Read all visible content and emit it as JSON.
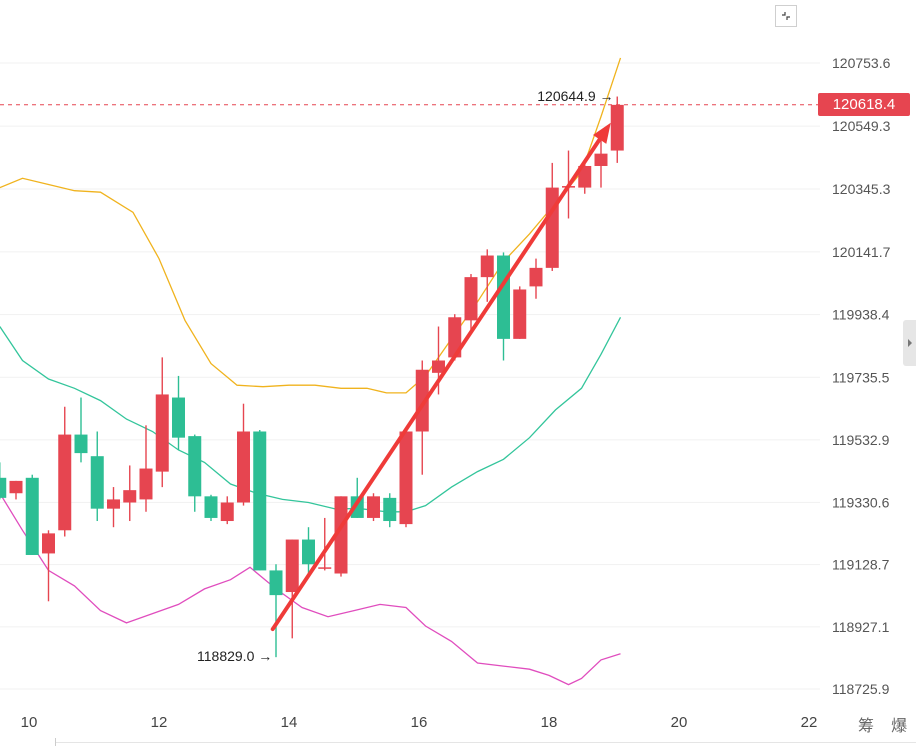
{
  "chart_data": {
    "type": "candlestick",
    "title": "",
    "xlabel": "",
    "ylabel": "",
    "y_ticks": [
      120753.6,
      120549.3,
      120345.3,
      120141.7,
      119938.4,
      119735.5,
      119532.9,
      119330.6,
      119128.7,
      118927.1,
      118725.9
    ],
    "y_tick_labels": [
      "120753.6",
      "120549.3",
      "120345.3",
      "120141.7",
      "119938.4",
      "119735.5",
      "119532.9",
      "119330.6",
      "119128.7",
      "118927.1",
      "118725.9"
    ],
    "x_ticks": [
      10,
      12,
      14,
      16,
      18,
      20,
      22
    ],
    "x_tick_labels": [
      "10",
      "12",
      "14",
      "16",
      "18",
      "20",
      "22"
    ],
    "grid": true,
    "bull_color": "#e64550",
    "bear_color": "#2dbe94",
    "candles": [
      {
        "x": 9.55,
        "o": 119410,
        "h": 119460,
        "l": 119340,
        "c": 119345
      },
      {
        "x": 9.8,
        "o": 119360,
        "h": 119400,
        "l": 119340,
        "c": 119400
      },
      {
        "x": 10.05,
        "o": 119410,
        "h": 119420,
        "l": 119160,
        "c": 119160
      },
      {
        "x": 10.3,
        "o": 119165,
        "h": 119240,
        "l": 119010,
        "c": 119230
      },
      {
        "x": 10.55,
        "o": 119240,
        "h": 119640,
        "l": 119220,
        "c": 119550
      },
      {
        "x": 10.8,
        "o": 119550,
        "h": 119670,
        "l": 119460,
        "c": 119490
      },
      {
        "x": 11.05,
        "o": 119480,
        "h": 119560,
        "l": 119270,
        "c": 119310
      },
      {
        "x": 11.3,
        "o": 119310,
        "h": 119380,
        "l": 119250,
        "c": 119340
      },
      {
        "x": 11.55,
        "o": 119330,
        "h": 119450,
        "l": 119270,
        "c": 119370
      },
      {
        "x": 11.8,
        "o": 119340,
        "h": 119580,
        "l": 119300,
        "c": 119440
      },
      {
        "x": 12.05,
        "o": 119430,
        "h": 119800,
        "l": 119380,
        "c": 119680
      },
      {
        "x": 12.3,
        "o": 119670,
        "h": 119740,
        "l": 119500,
        "c": 119540
      },
      {
        "x": 12.55,
        "o": 119545,
        "h": 119550,
        "l": 119300,
        "c": 119350
      },
      {
        "x": 12.8,
        "o": 119350,
        "h": 119355,
        "l": 119270,
        "c": 119280
      },
      {
        "x": 13.05,
        "o": 119270,
        "h": 119350,
        "l": 119260,
        "c": 119330
      },
      {
        "x": 13.3,
        "o": 119330,
        "h": 119650,
        "l": 119320,
        "c": 119560
      },
      {
        "x": 13.55,
        "o": 119560,
        "h": 119565,
        "l": 119110,
        "c": 119110
      },
      {
        "x": 13.8,
        "o": 119110,
        "h": 119130,
        "l": 118829,
        "c": 119030
      },
      {
        "x": 14.05,
        "o": 119040,
        "h": 119210,
        "l": 118890,
        "c": 119210
      },
      {
        "x": 14.3,
        "o": 119210,
        "h": 119250,
        "l": 119100,
        "c": 119130
      },
      {
        "x": 14.55,
        "o": 119120,
        "h": 119280,
        "l": 119110,
        "c": 119120
      },
      {
        "x": 14.8,
        "o": 119100,
        "h": 119350,
        "l": 119090,
        "c": 119350
      },
      {
        "x": 15.05,
        "o": 119350,
        "h": 119410,
        "l": 119280,
        "c": 119280
      },
      {
        "x": 15.3,
        "o": 119280,
        "h": 119360,
        "l": 119270,
        "c": 119350
      },
      {
        "x": 15.55,
        "o": 119345,
        "h": 119360,
        "l": 119250,
        "c": 119270
      },
      {
        "x": 15.8,
        "o": 119260,
        "h": 119570,
        "l": 119250,
        "c": 119560
      },
      {
        "x": 16.05,
        "o": 119560,
        "h": 119790,
        "l": 119420,
        "c": 119760
      },
      {
        "x": 16.3,
        "o": 119750,
        "h": 119900,
        "l": 119680,
        "c": 119790
      },
      {
        "x": 16.55,
        "o": 119800,
        "h": 119940,
        "l": 119790,
        "c": 119930
      },
      {
        "x": 16.8,
        "o": 119920,
        "h": 120070,
        "l": 119880,
        "c": 120060
      },
      {
        "x": 17.05,
        "o": 120060,
        "h": 120150,
        "l": 119980,
        "c": 120130
      },
      {
        "x": 17.3,
        "o": 120130,
        "h": 120140,
        "l": 119790,
        "c": 119860
      },
      {
        "x": 17.55,
        "o": 119860,
        "h": 120030,
        "l": 119860,
        "c": 120020
      },
      {
        "x": 17.8,
        "o": 120030,
        "h": 120120,
        "l": 119990,
        "c": 120090
      },
      {
        "x": 18.05,
        "o": 120090,
        "h": 120430,
        "l": 120080,
        "c": 120350
      },
      {
        "x": 18.3,
        "o": 120350,
        "h": 120470,
        "l": 120250,
        "c": 120355
      },
      {
        "x": 18.55,
        "o": 120350,
        "h": 120440,
        "l": 120330,
        "c": 120420
      },
      {
        "x": 18.8,
        "o": 120420,
        "h": 120520,
        "l": 120350,
        "c": 120460
      },
      {
        "x": 19.05,
        "o": 120470,
        "h": 120645,
        "l": 120430,
        "c": 120618
      }
    ],
    "bands": {
      "upper": {
        "color": "#f0b31e",
        "x": [
          9.55,
          9.9,
          10.3,
          10.7,
          11.1,
          11.6,
          12.0,
          12.4,
          12.8,
          13.2,
          13.6,
          14.0,
          14.4,
          14.8,
          15.2,
          15.5,
          15.8,
          16.1,
          16.5,
          16.9,
          17.3,
          17.7,
          18.1,
          18.5,
          18.8,
          19.1
        ],
        "y": [
          120350,
          120380,
          120360,
          120340,
          120335,
          120270,
          120120,
          119920,
          119780,
          119710,
          119705,
          119710,
          119710,
          119700,
          119700,
          119685,
          119685,
          119740,
          119860,
          119980,
          120110,
          120200,
          120300,
          120400,
          120580,
          120770
        ]
      },
      "middle": {
        "color": "#33c59b",
        "x": [
          9.55,
          9.9,
          10.3,
          10.7,
          11.1,
          11.5,
          11.9,
          12.3,
          12.7,
          13.1,
          13.5,
          13.9,
          14.3,
          14.7,
          15.1,
          15.5,
          15.8,
          16.1,
          16.5,
          16.9,
          17.3,
          17.7,
          18.1,
          18.5,
          18.8,
          19.1
        ],
        "y": [
          119900,
          119790,
          119730,
          119700,
          119660,
          119600,
          119560,
          119500,
          119460,
          119390,
          119360,
          119340,
          119330,
          119310,
          119310,
          119300,
          119300,
          119320,
          119380,
          119430,
          119470,
          119540,
          119630,
          119700,
          119810,
          119930
        ]
      },
      "lower": {
        "color": "#e04dbe",
        "x": [
          9.55,
          9.9,
          10.3,
          10.7,
          11.1,
          11.5,
          11.9,
          12.3,
          12.7,
          13.1,
          13.4,
          13.8,
          14.2,
          14.6,
          15.0,
          15.4,
          15.8,
          16.1,
          16.5,
          16.9,
          17.3,
          17.7,
          18.0,
          18.3,
          18.5,
          18.8,
          19.1
        ],
        "y": [
          119360,
          119240,
          119110,
          119060,
          118980,
          118940,
          118970,
          119000,
          119050,
          119080,
          119120,
          119050,
          118990,
          118960,
          118980,
          119000,
          118990,
          118930,
          118880,
          118810,
          118800,
          118790,
          118770,
          118740,
          118760,
          118820,
          118840
        ]
      }
    },
    "trend_arrows": [
      {
        "color": "#ef3b39",
        "from": {
          "x": 13.75,
          "y": 118920
        },
        "to": {
          "x": 18.95,
          "y": 120560
        }
      }
    ],
    "annotations": [
      {
        "text": "120644.9",
        "x": 19.05,
        "y": 120645,
        "side": "left"
      },
      {
        "text": "118829.0",
        "x": 13.8,
        "y": 118829,
        "side": "left"
      }
    ],
    "current_price": {
      "value": 120618.4,
      "label": "120618.4",
      "color": "#e64550"
    },
    "watermark": "筹 爆"
  }
}
